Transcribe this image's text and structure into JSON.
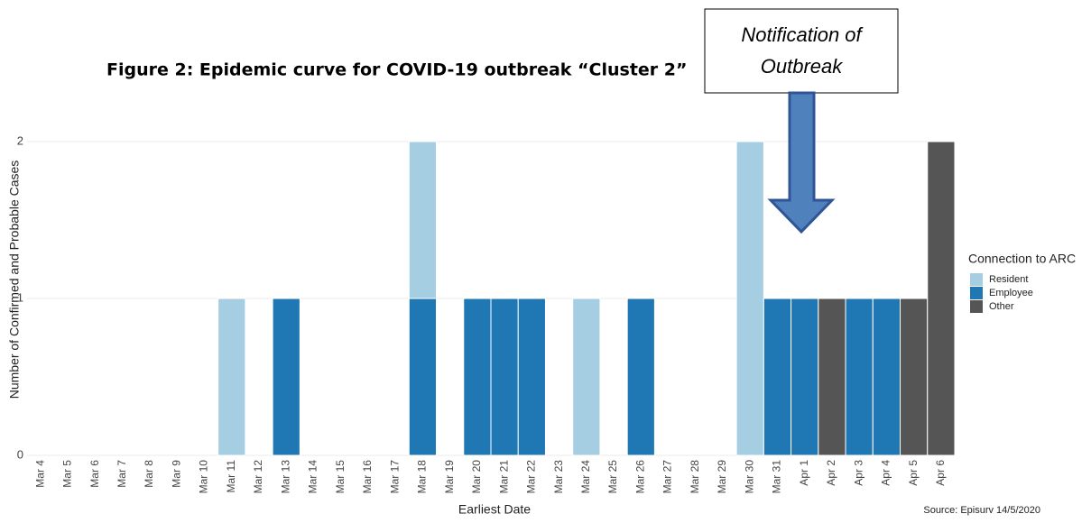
{
  "chart_data": {
    "type": "stacked-bar",
    "title": "Figure 2: Epidemic curve for COVID-19 outbreak “Cluster 2”",
    "annotation": [
      "Notification of",
      "Outbreak"
    ],
    "x_label": "Earliest Date",
    "y_label": "Number of Confirmed and Probable Cases",
    "legend_title": "Connection to ARC",
    "source": "Source: Episurv 14/5/2020",
    "categories": [
      "Mar 4",
      "Mar 5",
      "Mar 6",
      "Mar 7",
      "Mar 8",
      "Mar 9",
      "Mar 10",
      "Mar 11",
      "Mar 12",
      "Mar 13",
      "Mar 14",
      "Mar 15",
      "Mar 16",
      "Mar 17",
      "Mar 18",
      "Mar 19",
      "Mar 20",
      "Mar 21",
      "Mar 22",
      "Mar 23",
      "Mar 24",
      "Mar 25",
      "Mar 26",
      "Mar 27",
      "Mar 28",
      "Mar 29",
      "Mar 30",
      "Mar 31",
      "Apr 1",
      "Apr 2",
      "Apr 3",
      "Apr 4",
      "Apr 5",
      "Apr 6"
    ],
    "series": [
      {
        "name": "Resident",
        "color": "#a6cee3",
        "values": [
          0,
          0,
          0,
          0,
          0,
          0,
          0,
          1,
          0,
          0,
          0,
          0,
          0,
          0,
          1,
          0,
          0,
          0,
          0,
          0,
          1,
          0,
          0,
          0,
          0,
          0,
          2,
          0,
          0,
          0,
          0,
          0,
          0,
          0
        ]
      },
      {
        "name": "Employee",
        "color": "#1f78b4",
        "values": [
          0,
          0,
          0,
          0,
          0,
          0,
          0,
          0,
          0,
          1,
          0,
          0,
          0,
          0,
          1,
          0,
          1,
          1,
          1,
          0,
          0,
          0,
          1,
          0,
          0,
          0,
          0,
          1,
          1,
          0,
          1,
          1,
          0,
          0
        ]
      },
      {
        "name": "Other",
        "color": "#555555",
        "values": [
          0,
          0,
          0,
          0,
          0,
          0,
          0,
          0,
          0,
          0,
          0,
          0,
          0,
          0,
          0,
          0,
          0,
          0,
          0,
          0,
          0,
          0,
          0,
          0,
          0,
          0,
          0,
          0,
          0,
          1,
          0,
          0,
          1,
          2
        ]
      }
    ],
    "ylim": [
      0,
      2
    ],
    "yticks": [
      0,
      1,
      2
    ],
    "grid": true
  }
}
